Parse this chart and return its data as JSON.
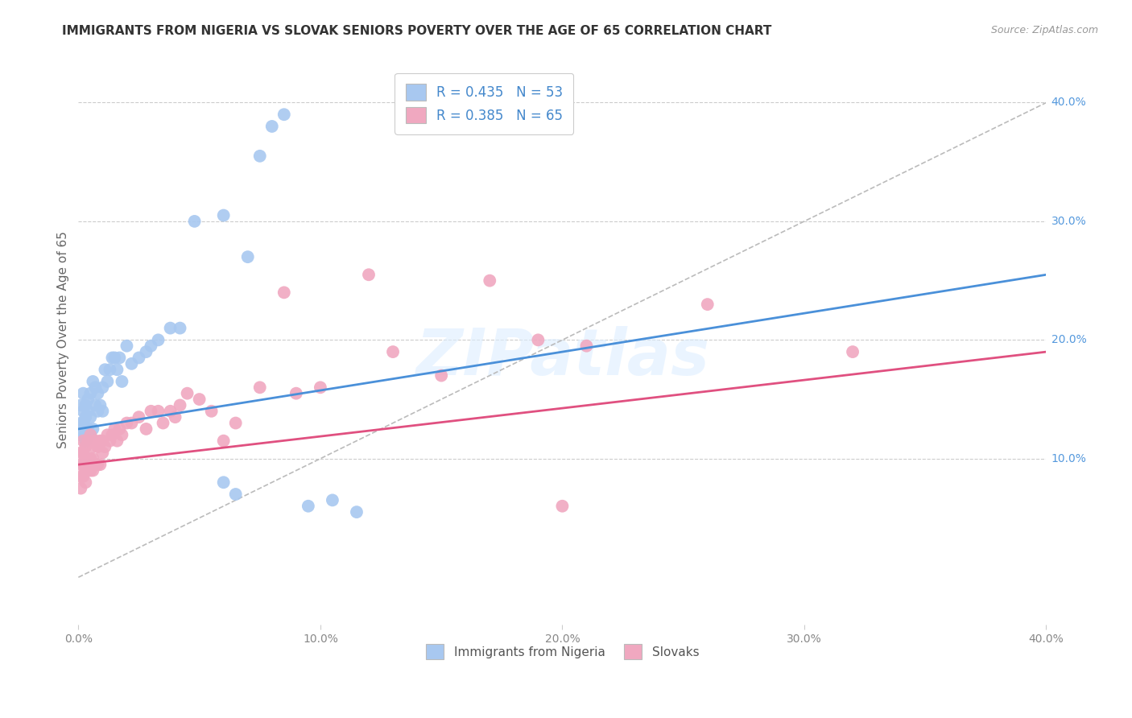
{
  "title": "IMMIGRANTS FROM NIGERIA VS SLOVAK SENIORS POVERTY OVER THE AGE OF 65 CORRELATION CHART",
  "source": "Source: ZipAtlas.com",
  "ylabel": "Seniors Poverty Over the Age of 65",
  "xlim": [
    0.0,
    0.4
  ],
  "ylim": [
    -0.04,
    0.44
  ],
  "series1_color": "#a8c8f0",
  "series2_color": "#f0a8c0",
  "line1_color": "#4a90d9",
  "line2_color": "#e05080",
  "background_color": "#ffffff",
  "grid_color": "#cccccc",
  "title_fontsize": 11,
  "label_fontsize": 11,
  "tick_fontsize": 10,
  "legend_fontsize": 12,
  "nigeria_x": [
    0.001,
    0.001,
    0.001,
    0.002,
    0.002,
    0.002,
    0.002,
    0.003,
    0.003,
    0.003,
    0.003,
    0.004,
    0.004,
    0.004,
    0.005,
    0.005,
    0.005,
    0.006,
    0.006,
    0.007,
    0.007,
    0.008,
    0.008,
    0.009,
    0.01,
    0.01,
    0.011,
    0.012,
    0.013,
    0.014,
    0.015,
    0.016,
    0.017,
    0.018,
    0.02,
    0.022,
    0.025,
    0.028,
    0.03,
    0.033,
    0.038,
    0.042,
    0.048,
    0.06,
    0.075,
    0.08,
    0.085,
    0.095,
    0.105,
    0.115,
    0.06,
    0.065,
    0.07
  ],
  "nigeria_y": [
    0.145,
    0.13,
    0.12,
    0.155,
    0.14,
    0.13,
    0.12,
    0.145,
    0.135,
    0.125,
    0.115,
    0.15,
    0.14,
    0.125,
    0.155,
    0.135,
    0.12,
    0.165,
    0.125,
    0.16,
    0.145,
    0.155,
    0.14,
    0.145,
    0.16,
    0.14,
    0.175,
    0.165,
    0.175,
    0.185,
    0.185,
    0.175,
    0.185,
    0.165,
    0.195,
    0.18,
    0.185,
    0.19,
    0.195,
    0.2,
    0.21,
    0.21,
    0.3,
    0.305,
    0.355,
    0.38,
    0.39,
    0.06,
    0.065,
    0.055,
    0.08,
    0.07,
    0.27
  ],
  "slovak_x": [
    0.001,
    0.001,
    0.001,
    0.001,
    0.002,
    0.002,
    0.002,
    0.002,
    0.003,
    0.003,
    0.003,
    0.003,
    0.004,
    0.004,
    0.004,
    0.005,
    0.005,
    0.005,
    0.006,
    0.006,
    0.006,
    0.007,
    0.007,
    0.008,
    0.008,
    0.009,
    0.009,
    0.01,
    0.01,
    0.011,
    0.012,
    0.013,
    0.014,
    0.015,
    0.016,
    0.017,
    0.018,
    0.02,
    0.022,
    0.025,
    0.028,
    0.03,
    0.033,
    0.035,
    0.038,
    0.04,
    0.042,
    0.045,
    0.05,
    0.055,
    0.06,
    0.065,
    0.075,
    0.085,
    0.09,
    0.1,
    0.12,
    0.13,
    0.15,
    0.17,
    0.19,
    0.21,
    0.26,
    0.32,
    0.2
  ],
  "slovak_y": [
    0.105,
    0.095,
    0.085,
    0.075,
    0.115,
    0.105,
    0.095,
    0.085,
    0.11,
    0.1,
    0.09,
    0.08,
    0.115,
    0.1,
    0.09,
    0.12,
    0.1,
    0.09,
    0.11,
    0.1,
    0.09,
    0.115,
    0.095,
    0.11,
    0.095,
    0.115,
    0.095,
    0.115,
    0.105,
    0.11,
    0.12,
    0.115,
    0.12,
    0.125,
    0.115,
    0.125,
    0.12,
    0.13,
    0.13,
    0.135,
    0.125,
    0.14,
    0.14,
    0.13,
    0.14,
    0.135,
    0.145,
    0.155,
    0.15,
    0.14,
    0.115,
    0.13,
    0.16,
    0.24,
    0.155,
    0.16,
    0.255,
    0.19,
    0.17,
    0.25,
    0.2,
    0.195,
    0.23,
    0.19,
    0.06
  ],
  "nigeria_line_x": [
    0.0,
    0.4
  ],
  "nigeria_line_y": [
    0.125,
    0.255
  ],
  "slovak_line_x": [
    0.0,
    0.4
  ],
  "slovak_line_y": [
    0.095,
    0.19
  ],
  "diag_line_x": [
    0.0,
    0.4
  ],
  "diag_line_y": [
    0.0,
    0.4
  ]
}
